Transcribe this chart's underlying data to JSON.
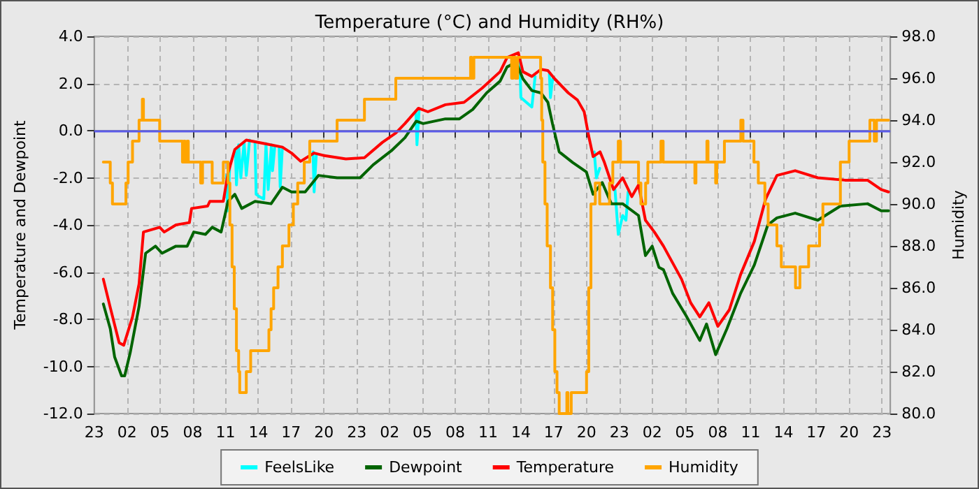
{
  "chart_data": {
    "type": "line",
    "title": "Temperature (°C) and Humidity (RH%)",
    "ylabel": "Temperature and Dewpoint",
    "y2label": "Humidity",
    "xlim": [
      "--01-01T23:00",
      "--01-04T23:46"
    ],
    "xticks": [
      {
        "value": "--01-01T23:00",
        "label": "23"
      },
      {
        "value": "--01-02T02:00",
        "label": "02"
      },
      {
        "value": "--01-02T05:00",
        "label": "05"
      },
      {
        "value": "--01-02T08:00",
        "label": "08"
      },
      {
        "value": "--01-02T11:00",
        "label": "11"
      },
      {
        "value": "--01-02T14:00",
        "label": "14"
      },
      {
        "value": "--01-02T17:00",
        "label": "17"
      },
      {
        "value": "--01-02T20:00",
        "label": "20"
      },
      {
        "value": "--01-02T23:00",
        "label": "23"
      },
      {
        "value": "--01-03T02:00",
        "label": "02"
      },
      {
        "value": "--01-03T05:00",
        "label": "05"
      },
      {
        "value": "--01-03T08:00",
        "label": "08"
      },
      {
        "value": "--01-03T11:00",
        "label": "11"
      },
      {
        "value": "--01-03T14:00",
        "label": "14"
      },
      {
        "value": "--01-03T17:00",
        "label": "17"
      },
      {
        "value": "--01-03T20:00",
        "label": "20"
      },
      {
        "value": "--01-03T23:00",
        "label": "23"
      },
      {
        "value": "--01-04T02:00",
        "label": "02"
      },
      {
        "value": "--01-04T05:00",
        "label": "05"
      },
      {
        "value": "--01-04T08:00",
        "label": "08"
      },
      {
        "value": "--01-04T11:00",
        "label": "11"
      },
      {
        "value": "--01-04T14:00",
        "label": "14"
      },
      {
        "value": "--01-04T17:00",
        "label": "17"
      },
      {
        "value": "--01-04T20:00",
        "label": "20"
      },
      {
        "value": "--01-04T23:00",
        "label": "23"
      }
    ],
    "ylim": [
      -12,
      4
    ],
    "yticks": [
      {
        "value": -12,
        "label": "-12.0"
      },
      {
        "value": -10,
        "label": "-10.0"
      },
      {
        "value": -8,
        "label": "-8.0"
      },
      {
        "value": -6,
        "label": "-6.0"
      },
      {
        "value": -4,
        "label": "-4.0"
      },
      {
        "value": -2,
        "label": "-2.0"
      },
      {
        "value": 0,
        "label": "0.0"
      },
      {
        "value": 2,
        "label": "2.0"
      },
      {
        "value": 4,
        "label": "4.0"
      }
    ],
    "y2lim": [
      80,
      98
    ],
    "y2ticks": [
      {
        "value": 80,
        "label": "80.0"
      },
      {
        "value": 82,
        "label": "82.0"
      },
      {
        "value": 84,
        "label": "84.0"
      },
      {
        "value": 86,
        "label": "86.0"
      },
      {
        "value": 88,
        "label": "88.0"
      },
      {
        "value": 90,
        "label": "90.0"
      },
      {
        "value": 92,
        "label": "92.0"
      },
      {
        "value": 94,
        "label": "94.0"
      },
      {
        "value": 96,
        "label": "96.0"
      },
      {
        "value": 98,
        "label": "98.0"
      }
    ],
    "grid": true,
    "legend": "bottom",
    "marker": "none",
    "ref_lines": [
      {
        "axis": "y",
        "value": 0,
        "color": "#5b5be8"
      }
    ],
    "series": [
      {
        "name": "FeelsLike",
        "color": "#00ffff",
        "x": [
          "--01-02T11:06",
          "--01-02T11:12",
          "--01-02T11:24",
          "--01-02T11:30",
          "--01-02T11:54",
          "--01-02T12:00",
          "--01-02T12:12",
          "--01-02T12:24",
          "--01-02T12:42",
          "--01-02T12:54",
          "--01-02T13:12",
          "--01-02T13:18",
          "--01-02T13:42",
          "--01-02T13:48",
          "--01-02T14:06",
          "--01-02T14:30",
          "--01-02T14:42",
          "--01-02T14:54",
          "--01-02T15:12",
          "--01-02T15:18",
          "--01-02T15:30",
          "--01-02T15:36",
          "--01-02T15:54",
          "--01-02T16:00",
          "--01-02T16:12",
          "--01-02T16:18",
          "--01-02T19:00",
          "--01-02T19:06",
          "--01-02T19:18",
          "--01-02T19:24",
          "--01-03T04:24",
          "--01-03T04:30",
          "--01-03T04:42",
          "--01-03T04:48",
          "--01-03T13:54",
          "--01-03T14:00",
          "--01-03T14:30",
          "--01-03T15:00",
          "--01-03T15:18",
          "--01-03T15:24",
          "--01-03T16:36",
          "--01-03T16:42",
          "--01-03T16:54",
          "--01-03T17:00",
          "--01-03T20:42",
          "--01-03T20:54",
          "--01-03T21:12",
          "--01-03T21:18",
          "--01-03T22:36",
          "--01-03T22:54",
          "--01-03T23:18",
          "--01-03T23:36",
          "--01-03T23:48"
        ],
        "values": [
          -1.9,
          -3.4,
          -1.4,
          null,
          -0.8,
          -2.3,
          -0.6,
          -2.0,
          -0.5,
          -1.9,
          -0.4,
          null,
          -0.5,
          -2.7,
          -2.8,
          -2.9,
          -0.55,
          -2.5,
          -0.6,
          -1.7,
          -0.7,
          null,
          -0.7,
          -2.4,
          -0.7,
          null,
          -0.9,
          -2.6,
          -1.0,
          null,
          0.8,
          -0.6,
          0.9,
          null,
          2.9,
          1.4,
          1.2,
          1.0,
          2.3,
          null,
          2.4,
          1.4,
          2.2,
          null,
          -0.9,
          -2.0,
          -1.6,
          null,
          -2.5,
          -4.4,
          -3.6,
          -3.8,
          -2.6
        ]
      },
      {
        "name": "Dewpoint",
        "color": "#006400",
        "x": [
          "--01-01T23:50",
          "--01-02T00:28",
          "--01-02T00:52",
          "--01-02T01:30",
          "--01-02T01:47",
          "--01-02T02:18",
          "--01-02T03:06",
          "--01-02T03:42",
          "--01-02T04:36",
          "--01-02T05:12",
          "--01-02T06:28",
          "--01-02T07:30",
          "--01-02T08:06",
          "--01-02T09:10",
          "--01-02T09:47",
          "--01-02T10:36",
          "--01-02T11:14",
          "--01-02T11:51",
          "--01-02T12:29",
          "--01-02T13:42",
          "--01-02T15:10",
          "--01-02T16:12",
          "--01-02T17:02",
          "--01-02T18:17",
          "--01-02T19:30",
          "--01-02T21:12",
          "--01-02T23:18",
          "--01-03T00:30",
          "--01-03T02:10",
          "--01-03T03:24",
          "--01-03T04:26",
          "--01-03T05:04",
          "--01-03T07:06",
          "--01-03T08:23",
          "--01-03T09:36",
          "--01-03T10:52",
          "--01-03T12:06",
          "--01-03T12:44",
          "--01-03T13:34",
          "--01-03T14:11",
          "--01-03T15:00",
          "--01-03T15:50",
          "--01-03T16:28",
          "--01-03T16:53",
          "--01-03T17:30",
          "--01-03T18:44",
          "--01-03T19:59",
          "--01-03T20:36",
          "--01-03T21:26",
          "--01-03T22:16",
          "--01-03T23:18",
          "--01-04T00:45",
          "--01-04T01:23",
          "--01-04T02:00",
          "--01-04T02:37",
          "--01-04T03:02",
          "--01-04T03:52",
          "--01-04T05:06",
          "--01-04T06:21",
          "--01-04T06:58",
          "--01-04T07:48",
          "--01-04T08:50",
          "--01-04T10:05",
          "--01-04T11:20",
          "--01-04T12:34",
          "--01-04T13:24",
          "--01-04T15:04",
          "--01-04T17:08",
          "--01-04T19:12",
          "--01-04T21:41",
          "--01-04T22:56",
          "--01-04T23:36"
        ],
        "values": [
          -7.35,
          -8.4,
          -9.6,
          -10.4,
          -10.4,
          -9.4,
          -7.45,
          -5.2,
          -4.9,
          -5.2,
          -4.9,
          -4.9,
          -4.3,
          -4.4,
          -4.1,
          -4.3,
          -3.0,
          -2.7,
          -3.3,
          -3.0,
          -3.1,
          -2.4,
          -2.6,
          -2.6,
          -1.9,
          -2.0,
          -2.0,
          -1.45,
          -0.85,
          -0.3,
          0.4,
          0.3,
          0.5,
          0.5,
          0.9,
          1.6,
          2.1,
          2.7,
          2.9,
          2.2,
          1.7,
          1.6,
          1.2,
          0.3,
          -0.9,
          -1.35,
          -1.75,
          -2.7,
          -2.2,
          -3.1,
          -3.1,
          -3.6,
          -5.3,
          -4.9,
          -5.8,
          -5.9,
          -6.9,
          -7.85,
          -8.9,
          -8.2,
          -9.5,
          -8.4,
          -6.9,
          -5.7,
          -4.0,
          -3.7,
          -3.5,
          -3.8,
          -3.2,
          -3.1,
          -3.4,
          -3.4
        ]
      },
      {
        "name": "Temperature",
        "color": "#ff0000",
        "x": [
          "--01-01T23:50",
          "--01-02T00:28",
          "--01-02T01:17",
          "--01-02T01:42",
          "--01-02T02:30",
          "--01-02T03:06",
          "--01-02T03:30",
          "--01-02T04:59",
          "--01-02T05:24",
          "--01-02T06:28",
          "--01-02T07:42",
          "--01-02T07:54",
          "--01-02T09:22",
          "--01-02T09:34",
          "--01-02T10:48",
          "--01-02T11:14",
          "--01-02T11:51",
          "--01-02T12:54",
          "--01-02T14:33",
          "--01-02T16:12",
          "--01-02T17:02",
          "--01-02T17:52",
          "--01-02T19:06",
          "--01-02T19:56",
          "--01-02T22:00",
          "--01-02T23:42",
          "--01-03T01:20",
          "--01-03T02:34",
          "--01-03T03:24",
          "--01-03T04:38",
          "--01-03T05:30",
          "--01-03T07:06",
          "--01-03T08:48",
          "--01-03T10:27",
          "--01-03T12:06",
          "--01-03T12:44",
          "--01-03T13:46",
          "--01-03T14:11",
          "--01-03T15:00",
          "--01-03T15:50",
          "--01-03T16:28",
          "--01-03T17:05",
          "--01-03T18:20",
          "--01-03T19:10",
          "--01-03T19:47",
          "--01-03T20:11",
          "--01-03T20:36",
          "--01-03T21:14",
          "--01-03T21:38",
          "--01-03T22:28",
          "--01-03T23:18",
          "--01-04T00:08",
          "--01-04T00:45",
          "--01-04T01:23",
          "--01-04T02:12",
          "--01-04T03:02",
          "--01-04T04:41",
          "--01-04T05:31",
          "--01-04T06:21",
          "--01-04T07:11",
          "--01-04T08:00",
          "--01-04T09:03",
          "--01-04T10:05",
          "--01-04T11:20",
          "--01-04T12:22",
          "--01-04T13:24",
          "--01-04T15:04",
          "--01-04T17:08",
          "--01-04T19:37",
          "--01-04T21:41",
          "--01-04T22:56",
          "--01-04T23:36"
        ],
        "values": [
          -6.3,
          -7.5,
          -9.0,
          -9.1,
          -7.9,
          -6.5,
          -4.3,
          -4.1,
          -4.3,
          -4.0,
          -3.9,
          -3.3,
          -3.2,
          -3.0,
          -3.0,
          -1.8,
          -0.8,
          -0.4,
          -0.55,
          -0.7,
          -0.95,
          -1.3,
          -0.95,
          -1.05,
          -1.2,
          -1.15,
          -0.5,
          -0.1,
          0.3,
          0.95,
          0.8,
          1.1,
          1.2,
          1.8,
          2.5,
          3.1,
          3.3,
          2.5,
          2.3,
          2.6,
          2.55,
          2.2,
          1.6,
          1.3,
          0.8,
          -0.2,
          -1.1,
          -0.9,
          -1.35,
          -2.5,
          -2.0,
          -2.8,
          -2.3,
          -3.8,
          -4.3,
          -4.9,
          -6.3,
          -7.3,
          -7.9,
          -7.3,
          -8.3,
          -7.6,
          -6.1,
          -4.7,
          -2.9,
          -1.9,
          -1.7,
          -2.0,
          -2.1,
          -2.1,
          -2.5,
          -2.6
        ]
      },
      {
        "name": "Humidity",
        "color": "#ffa500",
        "type": "step",
        "axis": "y2",
        "x": [
          "--01-01T23:50",
          "--01-02T00:28",
          "--01-02T00:40",
          "--01-02T01:54",
          "--01-02T02:06",
          "--01-02T02:30",
          "--01-02T03:06",
          "--01-02T03:24",
          "--01-02T03:30",
          "--01-02T04:59",
          "--01-02T07:04",
          "--01-02T07:12",
          "--01-02T07:18",
          "--01-02T07:30",
          "--01-02T07:36",
          "--01-02T08:44",
          "--01-02T08:54",
          "--01-02T09:47",
          "--01-02T10:48",
          "--01-02T11:14",
          "--01-02T11:24",
          "--01-02T11:36",
          "--01-02T11:48",
          "--01-02T12:00",
          "--01-02T12:12",
          "--01-02T12:18",
          "--01-02T12:54",
          "--01-02T13:18",
          "--01-02T14:58",
          "--01-02T15:10",
          "--01-02T15:24",
          "--01-02T15:48",
          "--01-02T16:12",
          "--01-02T16:48",
          "--01-02T17:12",
          "--01-02T17:36",
          "--01-02T18:12",
          "--01-02T18:42",
          "--01-02T21:12",
          "--01-02T23:42",
          "--01-03T02:34",
          "--01-03T09:24",
          "--01-03T09:30",
          "--01-03T09:42",
          "--01-03T13:09",
          "--01-03T13:18",
          "--01-03T13:30",
          "--01-03T13:42",
          "--01-03T15:48",
          "--01-03T15:54",
          "--01-03T16:00",
          "--01-03T16:12",
          "--01-03T16:24",
          "--01-03T16:42",
          "--01-03T16:54",
          "--01-03T17:06",
          "--01-03T17:18",
          "--01-03T17:30",
          "--01-03T18:12",
          "--01-03T18:18",
          "--01-03T18:36",
          "--01-03T20:00",
          "--01-03T20:12",
          "--01-03T20:24",
          "--01-03T20:48",
          "--01-03T21:12",
          "--01-03T22:06",
          "--01-03T22:24",
          "--01-03T22:54",
          "--01-03T23:06",
          "--01-04T00:45",
          "--01-04T00:58",
          "--01-04T01:24",
          "--01-04T01:36",
          "--01-04T02:48",
          "--01-04T03:00",
          "--01-04T05:54",
          "--01-04T06:00",
          "--01-04T07:00",
          "--01-04T07:06",
          "--01-04T07:48",
          "--01-04T07:54",
          "--01-04T08:36",
          "--01-04T10:06",
          "--01-04T10:18",
          "--01-04T11:18",
          "--01-04T11:42",
          "--01-04T12:18",
          "--01-04T12:36",
          "--01-04T13:24",
          "--01-04T13:48",
          "--01-04T15:06",
          "--01-04T15:30",
          "--01-04T16:18",
          "--01-04T17:18",
          "--01-04T17:36",
          "--01-04T19:12",
          "--01-04T20:00",
          "--01-04T21:54",
          "--01-04T22:18",
          "--01-04T22:30",
          "--01-04T23:36"
        ],
        "values": [
          92,
          91,
          90,
          91,
          92,
          93,
          94,
          95,
          94,
          93,
          92,
          93,
          92,
          93,
          92,
          91,
          92,
          91,
          92,
          91,
          89,
          87,
          85,
          83,
          82,
          81,
          82,
          83,
          84,
          85,
          86,
          87,
          88,
          89,
          90,
          91,
          92,
          93,
          94,
          95,
          96,
          97,
          96,
          97,
          96,
          97,
          96,
          97,
          96,
          94,
          92,
          90,
          88,
          86,
          84,
          82,
          81,
          80,
          81,
          80,
          81,
          82,
          86,
          90,
          91,
          90,
          91,
          92,
          93,
          92,
          91,
          90,
          91,
          92,
          93,
          92,
          91,
          92,
          93,
          92,
          91,
          92,
          93,
          94,
          93,
          92,
          91,
          90,
          89,
          88,
          87,
          86,
          87,
          88,
          89,
          90,
          92,
          93,
          94,
          93,
          94,
          94
        ]
      }
    ]
  }
}
